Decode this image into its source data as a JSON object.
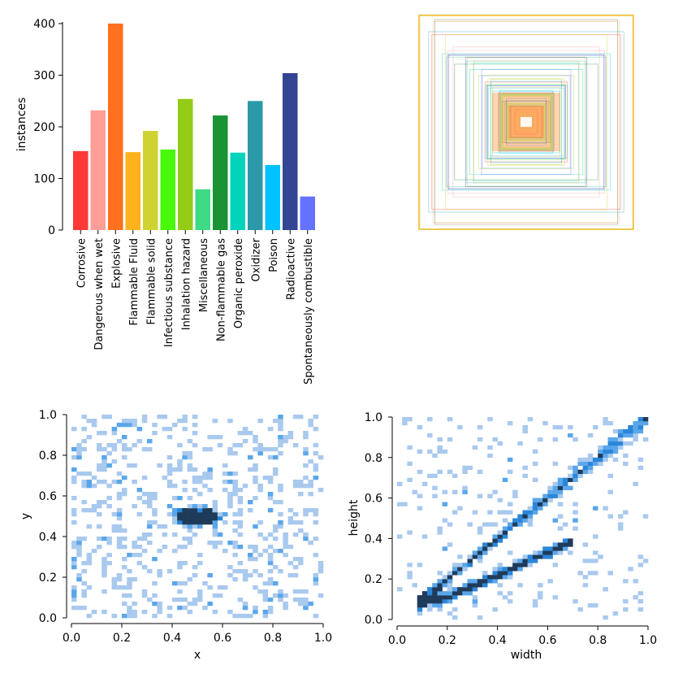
{
  "chart_data": [
    {
      "type": "bar",
      "ylabel": "instances",
      "ylim": [
        0,
        420
      ],
      "yticks": [
        0,
        100,
        200,
        300,
        400
      ],
      "categories": [
        "Corrosive",
        "Dangerous when wet",
        "Explosive",
        "Flammable Fluid",
        "Flammable solid",
        "Infectious substance",
        "Inhalation hazard",
        "Miscellaneous",
        "Non-flammable gas",
        "Organic peroxide",
        "Oxidizer",
        "Poison",
        "Radioactive",
        "Spontaneously combustible"
      ],
      "values": [
        153,
        232,
        400,
        151,
        192,
        156,
        254,
        79,
        222,
        150,
        250,
        126,
        304,
        65
      ],
      "colors": [
        "#ff3838",
        "#ff9d97",
        "#ff701f",
        "#ffb21d",
        "#cfd231",
        "#48f90a",
        "#92cc17",
        "#3ddb86",
        "#1a9334",
        "#00d4bb",
        "#2c99a8",
        "#00c2ff",
        "#344593",
        "#6473ff"
      ]
    },
    {
      "type": "boxes",
      "description_label": "",
      "box_count": 60
    },
    {
      "type": "heatmap",
      "xlabel": "x",
      "ylabel": "y",
      "xlim": [
        0,
        1
      ],
      "ylim": [
        0,
        1
      ],
      "xticks": [
        "0.0",
        "0.2",
        "0.4",
        "0.6",
        "0.8",
        "1.0"
      ],
      "yticks": [
        "0.0",
        "0.2",
        "0.4",
        "0.6",
        "0.8",
        "1.0"
      ]
    },
    {
      "type": "heatmap",
      "xlabel": "width",
      "ylabel": "height",
      "xlim": [
        0,
        1
      ],
      "ylim": [
        0,
        1
      ],
      "xticks": [
        "0.0",
        "0.2",
        "0.4",
        "0.6",
        "0.8",
        "1.0"
      ],
      "yticks": [
        "0.0",
        "0.2",
        "0.4",
        "0.6",
        "0.8",
        "1.0"
      ]
    }
  ]
}
